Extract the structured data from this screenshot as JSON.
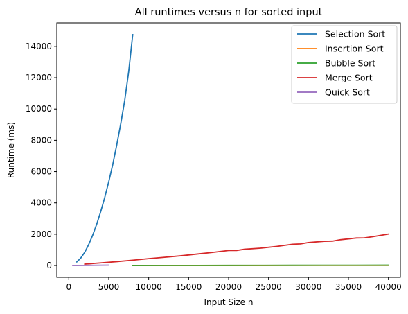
{
  "chart_data": {
    "type": "line",
    "title": "All runtimes versus n for sorted input",
    "xlabel": "Input Size n",
    "ylabel": "Runtime (ms)",
    "xlim": [
      -1500,
      41500
    ],
    "ylim": [
      -750,
      15500
    ],
    "xticks": [
      0,
      5000,
      10000,
      15000,
      20000,
      25000,
      30000,
      35000,
      40000
    ],
    "yticks": [
      0,
      2000,
      4000,
      6000,
      8000,
      10000,
      12000,
      14000
    ],
    "grid": false,
    "legend_position": "top-right",
    "series": [
      {
        "name": "Selection Sort",
        "color": "#1f77b4",
        "x": [
          1000,
          1500,
          2000,
          2500,
          3000,
          3500,
          4000,
          4500,
          5000,
          5500,
          6000,
          6500,
          7000,
          7500,
          8000
        ],
        "y": [
          230,
          480,
          850,
          1350,
          1950,
          2650,
          3450,
          4350,
          5350,
          6450,
          7700,
          9050,
          10550,
          12400,
          14750
        ]
      },
      {
        "name": "Insertion Sort",
        "color": "#ff7f0e",
        "x": [
          8000,
          12000,
          16000,
          20000,
          24000,
          28000,
          32000,
          36000,
          40000
        ],
        "y": [
          2,
          3,
          4,
          5,
          6,
          7,
          8,
          9,
          10
        ]
      },
      {
        "name": "Bubble Sort",
        "color": "#2ca02c",
        "x": [
          8000,
          12000,
          16000,
          20000,
          24000,
          28000,
          32000,
          36000,
          40000
        ],
        "y": [
          5,
          7,
          9,
          11,
          14,
          16,
          18,
          20,
          22
        ]
      },
      {
        "name": "Merge Sort",
        "color": "#d62728",
        "x": [
          2000,
          4000,
          6000,
          8000,
          10000,
          12000,
          14000,
          16000,
          18000,
          20000,
          21000,
          22000,
          24000,
          26000,
          28000,
          29000,
          30000,
          32000,
          33000,
          34000,
          36000,
          37000,
          38000,
          40000
        ],
        "y": [
          90,
          170,
          250,
          340,
          440,
          530,
          620,
          730,
          840,
          960,
          960,
          1040,
          1110,
          1220,
          1360,
          1380,
          1470,
          1550,
          1560,
          1650,
          1760,
          1770,
          1840,
          2010
        ]
      },
      {
        "name": "Quick Sort",
        "color": "#9467bd",
        "x": [
          500,
          1000,
          2000,
          3000,
          4000,
          5000
        ],
        "y": [
          3,
          5,
          9,
          13,
          18,
          23
        ]
      }
    ]
  }
}
